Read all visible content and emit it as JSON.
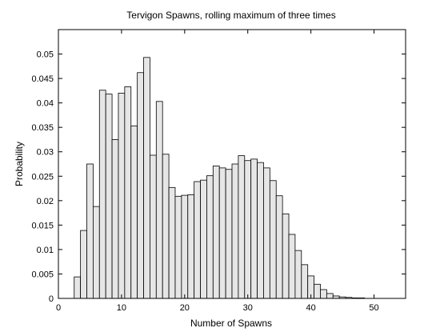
{
  "chart_data": {
    "type": "bar",
    "title": "Tervigon Spawns, rolling maximum of three times",
    "xlabel": "Number of Spawns",
    "ylabel": "Probability",
    "xlim": [
      0,
      55
    ],
    "ylim": [
      0,
      0.055
    ],
    "xticks": [
      0,
      10,
      20,
      30,
      40,
      50
    ],
    "yticks": [
      0,
      0.005,
      0.01,
      0.015,
      0.02,
      0.025,
      0.03,
      0.035,
      0.04,
      0.045,
      0.05
    ],
    "ytick_labels": [
      "0",
      "0.005",
      "0.01",
      "0.015",
      "0.02",
      "0.025",
      "0.03",
      "0.035",
      "0.04",
      "0.045",
      "0.05"
    ],
    "grid": false,
    "bar_color": "#e6e6e6",
    "edge_color": "#000000",
    "x": [
      3,
      4,
      5,
      6,
      7,
      8,
      9,
      10,
      11,
      12,
      13,
      14,
      15,
      16,
      17,
      18,
      19,
      20,
      21,
      22,
      23,
      24,
      25,
      26,
      27,
      28,
      29,
      30,
      31,
      32,
      33,
      34,
      35,
      36,
      37,
      38,
      39,
      40,
      41,
      42,
      43,
      44,
      45,
      46,
      47,
      48
    ],
    "values": [
      0.0044,
      0.0139,
      0.0275,
      0.0188,
      0.0426,
      0.0418,
      0.0325,
      0.042,
      0.0433,
      0.0353,
      0.0462,
      0.0493,
      0.0293,
      0.0403,
      0.0295,
      0.0227,
      0.0209,
      0.0211,
      0.0212,
      0.0239,
      0.0242,
      0.0251,
      0.0271,
      0.0267,
      0.0264,
      0.0275,
      0.0292,
      0.0282,
      0.0285,
      0.0278,
      0.0267,
      0.0241,
      0.021,
      0.0173,
      0.0131,
      0.0098,
      0.0069,
      0.0046,
      0.0029,
      0.0018,
      0.001,
      0.0005,
      0.0003,
      0.0002,
      0.0001,
      0.0001
    ]
  }
}
